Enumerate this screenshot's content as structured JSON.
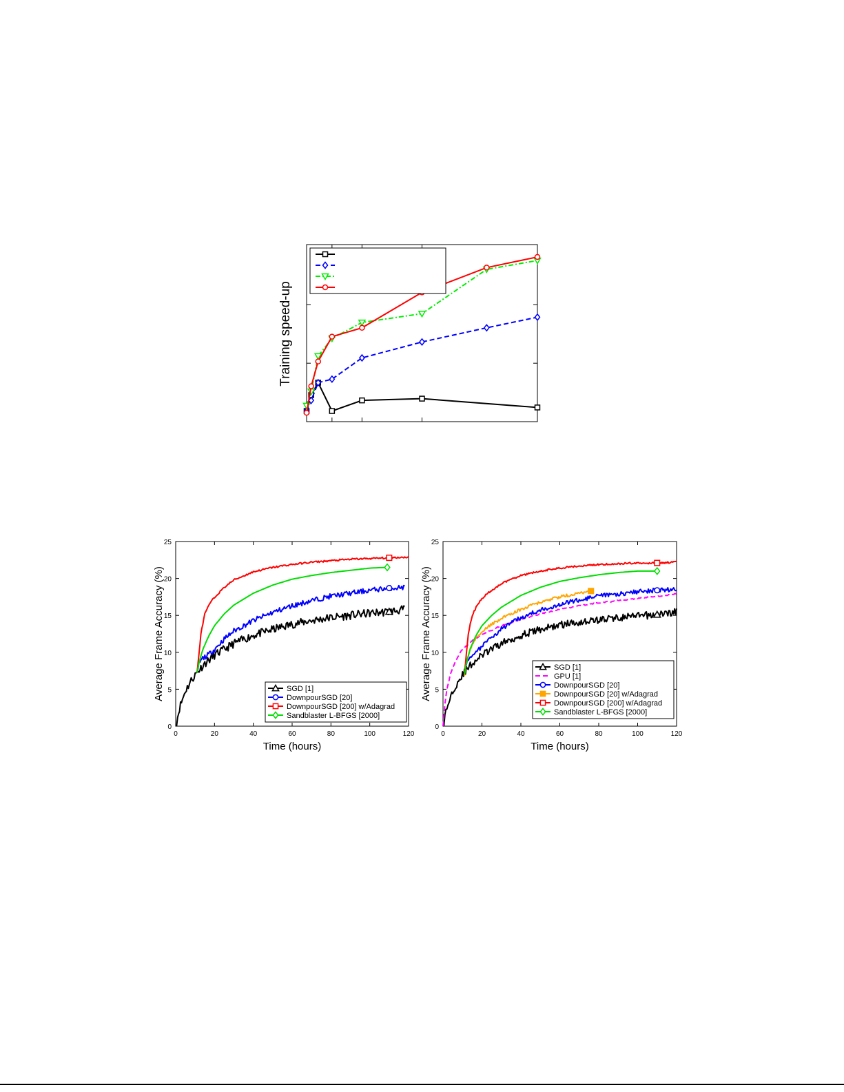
{
  "chart_data": [
    {
      "id": "speedup",
      "type": "line",
      "title": "",
      "xlabel": "",
      "ylabel": "Training speed-up",
      "grid": false,
      "legend_position": "top-left",
      "xlim": [
        0,
        100
      ],
      "ylim": [
        0,
        100
      ],
      "series": [
        {
          "name": "",
          "color": "#000000",
          "dash": "solid",
          "marker": "square",
          "x": [
            0,
            2,
            5,
            11,
            24,
            50,
            100
          ],
          "y": [
            6,
            15,
            22,
            6,
            12,
            13,
            8
          ]
        },
        {
          "name": "",
          "color": "#0000ff",
          "dash": "dashed",
          "marker": "diamond",
          "x": [
            0,
            2,
            5,
            11,
            24,
            50,
            78,
            100
          ],
          "y": [
            6,
            12,
            22,
            24,
            36,
            45,
            53,
            59
          ]
        },
        {
          "name": "",
          "color": "#00ee00",
          "dash": "dashdot",
          "marker": "triangle-down",
          "x": [
            0,
            2,
            5,
            11,
            24,
            50,
            78,
            100
          ],
          "y": [
            9,
            17,
            37,
            47,
            56,
            61,
            86,
            91
          ]
        },
        {
          "name": "",
          "color": "#ff0000",
          "dash": "solid",
          "marker": "circle",
          "x": [
            0,
            2,
            5,
            11,
            24,
            50,
            78,
            100
          ],
          "y": [
            5,
            20,
            34,
            48,
            53,
            73,
            87,
            93
          ]
        }
      ]
    },
    {
      "id": "accuracy-left",
      "type": "line",
      "title": "",
      "xlabel": "Time (hours)",
      "ylabel": "Average Frame Accuracy (%)",
      "grid": false,
      "legend_position": "bottom-right",
      "xlim": [
        0,
        120
      ],
      "ylim": [
        0,
        25
      ],
      "xticks": [
        "0",
        "20",
        "40",
        "60",
        "80",
        "100",
        "120"
      ],
      "yticks": [
        "0",
        "5",
        "10",
        "15",
        "20",
        "25"
      ],
      "series": [
        {
          "name": "SGD [1]",
          "color": "#000000",
          "dash": "solid",
          "marker": "triangle",
          "x": [
            0,
            2,
            5,
            8,
            11,
            15,
            20,
            30,
            40,
            50,
            60,
            70,
            80,
            90,
            100,
            110,
            118
          ],
          "y": [
            0,
            2.5,
            4.8,
            6.2,
            7.3,
            8.5,
            9.6,
            11.2,
            12.3,
            13.1,
            13.8,
            14.3,
            14.7,
            15.0,
            15.3,
            15.5,
            15.8
          ],
          "noise": 0.55,
          "marker_at": 110
        },
        {
          "name": "DownpourSGD [20]",
          "color": "#0000ff",
          "dash": "solid",
          "marker": "circle",
          "x": [
            11,
            12,
            14,
            17,
            20,
            25,
            30,
            40,
            50,
            60,
            70,
            80,
            90,
            100,
            110,
            118
          ],
          "y": [
            7.2,
            8.5,
            9.2,
            9.7,
            10.4,
            11.8,
            12.9,
            14.3,
            15.4,
            16.3,
            17.0,
            17.6,
            18.0,
            18.4,
            18.7,
            18.8
          ],
          "noise": 0.35,
          "marker_at": 110
        },
        {
          "name": "DownpourSGD [200] w/Adagrad",
          "color": "#ff0000",
          "dash": "solid",
          "marker": "square",
          "x": [
            11,
            12,
            13,
            15,
            18,
            22,
            26,
            30,
            40,
            50,
            60,
            70,
            80,
            90,
            100,
            110,
            120
          ],
          "y": [
            7.2,
            9.8,
            12.5,
            15.2,
            16.8,
            18.0,
            19.0,
            19.8,
            20.9,
            21.5,
            21.9,
            22.2,
            22.4,
            22.6,
            22.7,
            22.8,
            22.9
          ],
          "noise": 0.12,
          "marker_at": 110
        },
        {
          "name": "Sandblaster L-BFGS [2000]",
          "color": "#00dd00",
          "dash": "solid",
          "marker": "diamond",
          "x": [
            11,
            12,
            14,
            17,
            20,
            25,
            30,
            40,
            50,
            60,
            70,
            80,
            90,
            100,
            109
          ],
          "y": [
            7.2,
            8.6,
            10.4,
            12.2,
            13.6,
            15.2,
            16.4,
            18.0,
            19.1,
            19.9,
            20.4,
            20.8,
            21.1,
            21.4,
            21.5
          ],
          "noise": 0.0,
          "marker_at": 109
        }
      ]
    },
    {
      "id": "accuracy-right",
      "type": "line",
      "title": "",
      "xlabel": "Time (hours)",
      "ylabel": "Average Frame Accuracy (%)",
      "grid": false,
      "legend_position": "bottom-right",
      "xlim": [
        0,
        120
      ],
      "ylim": [
        0,
        25
      ],
      "xticks": [
        "0",
        "20",
        "40",
        "60",
        "80",
        "100",
        "120"
      ],
      "yticks": [
        "0",
        "5",
        "10",
        "15",
        "20",
        "25"
      ],
      "series": [
        {
          "name": "SGD [1]",
          "color": "#000000",
          "dash": "solid",
          "marker": "triangle",
          "x": [
            0,
            2,
            5,
            8,
            11,
            15,
            20,
            30,
            40,
            50,
            60,
            70,
            80,
            90,
            100,
            110,
            120
          ],
          "y": [
            0,
            2.5,
            4.8,
            6.2,
            7.3,
            8.5,
            9.6,
            11.2,
            12.3,
            13.1,
            13.7,
            14.1,
            14.4,
            14.7,
            14.9,
            15.1,
            15.5
          ],
          "noise": 0.5,
          "marker_at": 110
        },
        {
          "name": "GPU [1]",
          "color": "#ff00ff",
          "dash": "dashed",
          "marker": "none",
          "x": [
            0,
            1,
            2,
            4,
            6,
            8,
            10,
            15,
            20,
            30,
            40,
            50,
            60,
            70,
            80,
            90,
            100,
            110,
            120
          ],
          "y": [
            0,
            3.0,
            5.0,
            7.2,
            8.6,
            9.6,
            10.4,
            11.6,
            12.4,
            13.6,
            14.5,
            15.2,
            15.8,
            16.3,
            16.7,
            17.0,
            17.3,
            17.6,
            17.9
          ],
          "noise": 0.08,
          "marker_at": -1
        },
        {
          "name": "DownpourSGD [20]",
          "color": "#0000ff",
          "dash": "solid",
          "marker": "circle",
          "x": [
            11,
            12,
            14,
            17,
            20,
            25,
            30,
            40,
            50,
            60,
            70,
            80,
            90,
            100,
            110,
            120
          ],
          "y": [
            7.0,
            8.5,
            9.5,
            10.0,
            10.8,
            12.0,
            13.2,
            14.7,
            15.7,
            16.5,
            17.1,
            17.6,
            17.9,
            18.2,
            18.4,
            18.5
          ],
          "noise": 0.3,
          "marker_at": 110
        },
        {
          "name": "DownpourSGD [20] w/Adagrad",
          "color": "#ffa500",
          "dash": "solid",
          "marker": "filled-square",
          "x": [
            11,
            12,
            14,
            17,
            20,
            25,
            30,
            40,
            50,
            60,
            70,
            76
          ],
          "y": [
            6.8,
            8.5,
            10.5,
            12.0,
            12.9,
            13.8,
            14.6,
            15.8,
            16.8,
            17.5,
            18.0,
            18.3
          ],
          "noise": 0.2,
          "marker_at": 76
        },
        {
          "name": "DownpourSGD [200] w/Adagrad",
          "color": "#ff0000",
          "dash": "solid",
          "marker": "square",
          "x": [
            11,
            12,
            13,
            15,
            18,
            22,
            26,
            30,
            40,
            50,
            60,
            70,
            80,
            90,
            100,
            110,
            120
          ],
          "y": [
            7.0,
            9.8,
            12.5,
            15.0,
            16.6,
            17.8,
            18.6,
            19.3,
            20.4,
            21.0,
            21.4,
            21.7,
            21.9,
            22.0,
            22.1,
            22.1,
            22.2
          ],
          "noise": 0.12,
          "marker_at": 110
        },
        {
          "name": "Sandblaster L-BFGS [2000]",
          "color": "#00dd00",
          "dash": "solid",
          "marker": "diamond",
          "x": [
            11,
            12,
            14,
            17,
            20,
            25,
            30,
            40,
            50,
            60,
            70,
            80,
            90,
            100,
            110
          ],
          "y": [
            7.0,
            8.6,
            10.5,
            12.3,
            13.6,
            15.0,
            16.1,
            17.7,
            18.8,
            19.6,
            20.1,
            20.5,
            20.8,
            21.0,
            21.0
          ],
          "noise": 0.0,
          "marker_at": 110
        }
      ]
    }
  ]
}
